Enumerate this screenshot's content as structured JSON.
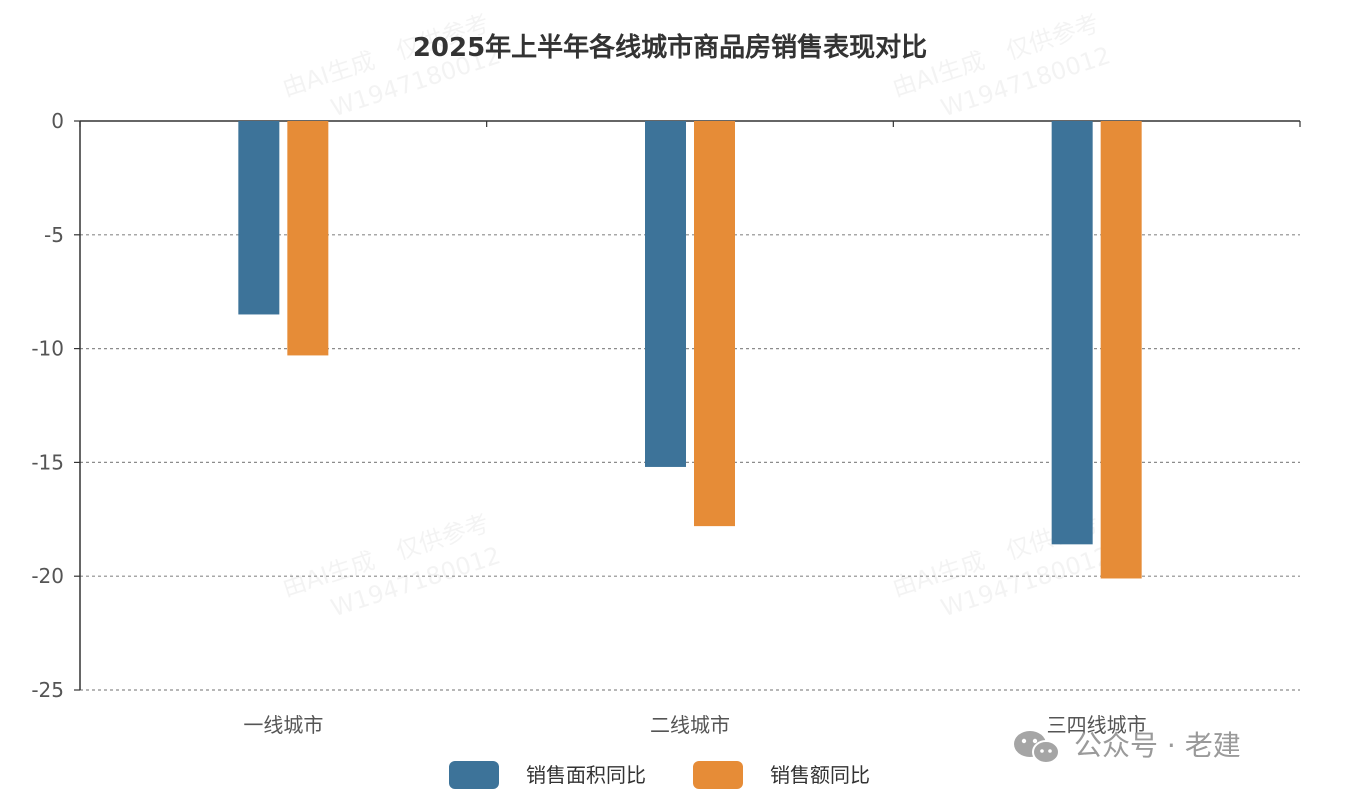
{
  "chart_data": {
    "type": "bar",
    "title": "2025年上半年各线城市商品房销售表现对比",
    "categories": [
      "一线城市",
      "二线城市",
      "三四线城市"
    ],
    "series": [
      {
        "name": "销售面积同比",
        "values": [
          -8.5,
          -15.2,
          -18.6
        ],
        "color": "#3d7399"
      },
      {
        "name": "销售额同比",
        "values": [
          -10.3,
          -17.8,
          -20.1
        ],
        "color": "#e68c37"
      }
    ],
    "ylim": [
      -25,
      0
    ],
    "yticks": [
      0,
      -5,
      -10,
      -15,
      -20,
      -25
    ],
    "grid": true,
    "legend_position": "bottom-center"
  },
  "watermark": {
    "line1": "由AI生成　仅供参考",
    "line2": "W1947180012"
  },
  "brand": {
    "text": "公众号 · 老建",
    "icon": "wechat-icon"
  }
}
